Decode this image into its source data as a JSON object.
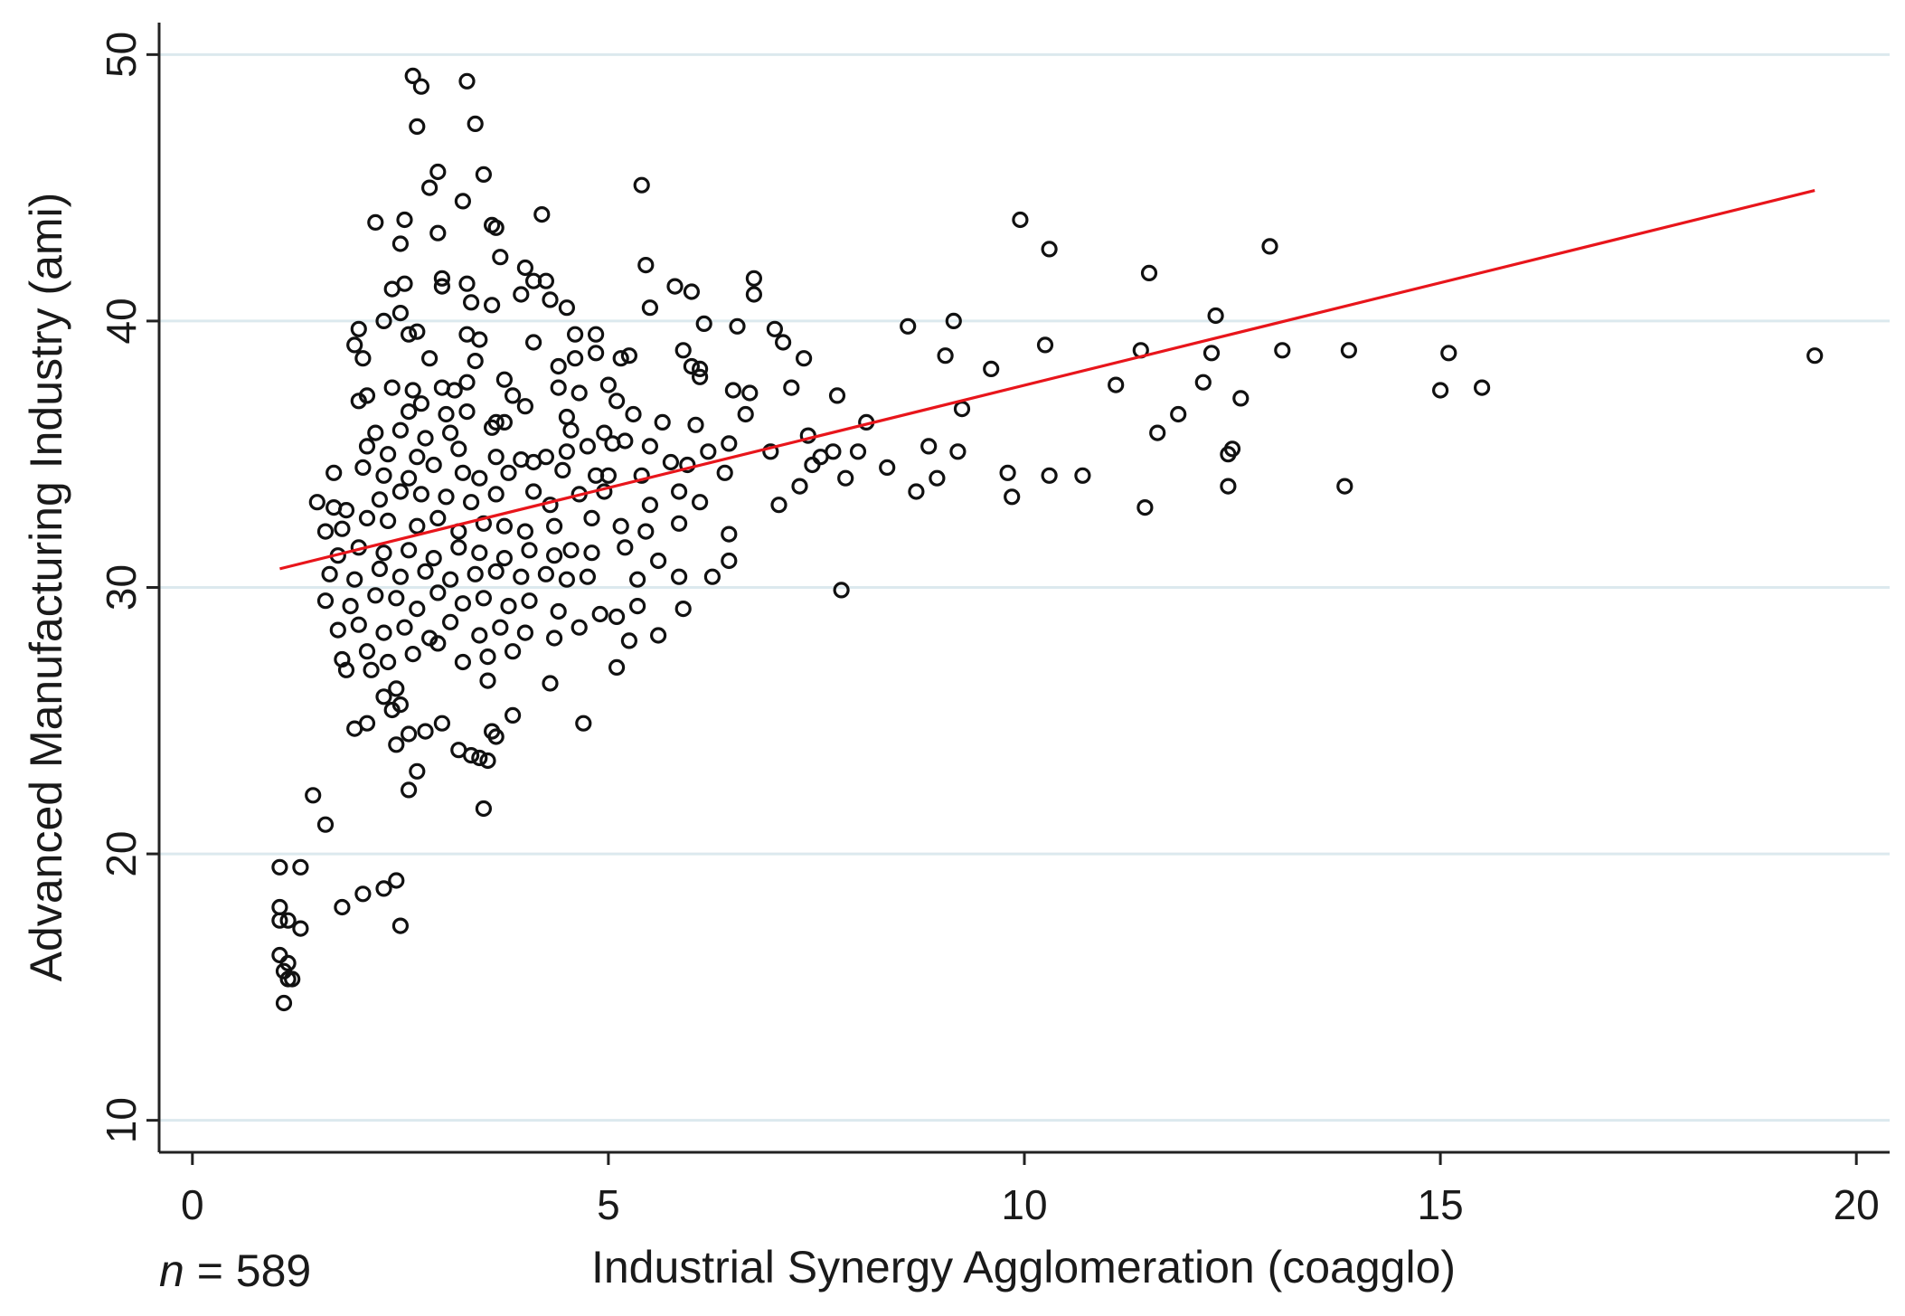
{
  "chart_data": {
    "type": "scatter",
    "title": "",
    "xlabel": "Industrial Synergy Agglomeration (coagglo)",
    "ylabel": "Advanced Manufacturing Industry (ami)",
    "xlim": [
      -0.4,
      20.4
    ],
    "ylim": [
      8.8,
      51.2
    ],
    "xticks": [
      0,
      5,
      10,
      15,
      20
    ],
    "yticks": [
      10,
      20,
      30,
      40,
      50
    ],
    "x_tick_labels": [
      "0",
      "5",
      "10",
      "15",
      "20"
    ],
    "y_tick_labels": [
      "10",
      "20",
      "30",
      "40",
      "50"
    ],
    "grid": "horizontal",
    "note_var": "n",
    "note_rest": " = 589",
    "colors": {
      "points": "#111111",
      "fit_line": "#e8151b",
      "grid": "#dce9ee"
    },
    "fit_line": {
      "x": [
        1.05,
        19.5
      ],
      "y": [
        30.7,
        44.9
      ]
    },
    "points": [
      [
        2.65,
        49.2
      ],
      [
        2.75,
        48.8
      ],
      [
        3.3,
        49
      ],
      [
        3.4,
        47.4
      ],
      [
        2.7,
        47.3
      ],
      [
        3.5,
        45.5
      ],
      [
        2.95,
        45.6
      ],
      [
        2.85,
        45
      ],
      [
        3.25,
        44.5
      ],
      [
        5.4,
        45.1
      ],
      [
        2.2,
        43.7
      ],
      [
        2.55,
        43.8
      ],
      [
        3.6,
        43.6
      ],
      [
        3.65,
        43.5
      ],
      [
        2.95,
        43.3
      ],
      [
        4.2,
        44
      ],
      [
        2.5,
        42.9
      ],
      [
        3.7,
        42.4
      ],
      [
        4.0,
        42
      ],
      [
        5.45,
        42.1
      ],
      [
        10.3,
        42.7
      ],
      [
        12.95,
        42.8
      ],
      [
        9.95,
        43.8
      ],
      [
        11.5,
        41.8
      ],
      [
        2.4,
        41.2
      ],
      [
        2.55,
        41.4
      ],
      [
        3.0,
        41.6
      ],
      [
        3.3,
        41.4
      ],
      [
        3.0,
        41.3
      ],
      [
        4.1,
        41.5
      ],
      [
        4.25,
        41.5
      ],
      [
        5.8,
        41.3
      ],
      [
        6.0,
        41.1
      ],
      [
        6.75,
        41.6
      ],
      [
        6.75,
        41
      ],
      [
        3.35,
        40.7
      ],
      [
        3.6,
        40.6
      ],
      [
        3.95,
        41
      ],
      [
        4.3,
        40.8
      ],
      [
        4.5,
        40.5
      ],
      [
        2.3,
        40
      ],
      [
        2.5,
        40.3
      ],
      [
        5.5,
        40.5
      ],
      [
        2.0,
        39.7
      ],
      [
        2.6,
        39.5
      ],
      [
        2.7,
        39.6
      ],
      [
        3.3,
        39.5
      ],
      [
        3.45,
        39.3
      ],
      [
        4.1,
        39.2
      ],
      [
        4.6,
        39.5
      ],
      [
        4.85,
        39.5
      ],
      [
        6.15,
        39.9
      ],
      [
        6.55,
        39.8
      ],
      [
        7.0,
        39.7
      ],
      [
        7.1,
        39.2
      ],
      [
        8.6,
        39.8
      ],
      [
        9.15,
        40
      ],
      [
        12.3,
        40.2
      ],
      [
        1.95,
        39.1
      ],
      [
        2.05,
        38.6
      ],
      [
        2.85,
        38.6
      ],
      [
        3.4,
        38.5
      ],
      [
        4.4,
        38.3
      ],
      [
        4.6,
        38.6
      ],
      [
        4.85,
        38.8
      ],
      [
        5.15,
        38.6
      ],
      [
        5.25,
        38.7
      ],
      [
        5.9,
        38.9
      ],
      [
        6.0,
        38.3
      ],
      [
        6.1,
        38.2
      ],
      [
        7.35,
        38.6
      ],
      [
        9.05,
        38.7
      ],
      [
        10.25,
        39.1
      ],
      [
        11.4,
        38.9
      ],
      [
        12.25,
        38.8
      ],
      [
        13.1,
        38.9
      ],
      [
        13.9,
        38.9
      ],
      [
        15.1,
        38.8
      ],
      [
        19.5,
        38.7
      ],
      [
        2.4,
        37.5
      ],
      [
        2.65,
        37.4
      ],
      [
        3.0,
        37.5
      ],
      [
        3.15,
        37.4
      ],
      [
        3.3,
        37.7
      ],
      [
        3.75,
        37.8
      ],
      [
        3.85,
        37.2
      ],
      [
        4.4,
        37.5
      ],
      [
        4.65,
        37.3
      ],
      [
        5.0,
        37.6
      ],
      [
        5.1,
        37
      ],
      [
        6.1,
        37.9
      ],
      [
        6.5,
        37.4
      ],
      [
        6.7,
        37.3
      ],
      [
        7.2,
        37.5
      ],
      [
        7.75,
        37.2
      ],
      [
        9.6,
        38.2
      ],
      [
        11.1,
        37.6
      ],
      [
        12.15,
        37.7
      ],
      [
        12.6,
        37.1
      ],
      [
        15.0,
        37.4
      ],
      [
        15.5,
        37.5
      ],
      [
        2.0,
        37
      ],
      [
        2.1,
        37.2
      ],
      [
        2.6,
        36.6
      ],
      [
        2.75,
        36.9
      ],
      [
        3.05,
        36.5
      ],
      [
        3.3,
        36.6
      ],
      [
        3.65,
        36.2
      ],
      [
        3.75,
        36.2
      ],
      [
        4.0,
        36.8
      ],
      [
        4.5,
        36.4
      ],
      [
        5.3,
        36.5
      ],
      [
        5.65,
        36.2
      ],
      [
        6.05,
        36.1
      ],
      [
        6.65,
        36.5
      ],
      [
        8.1,
        36.2
      ],
      [
        9.25,
        36.7
      ],
      [
        11.85,
        36.5
      ],
      [
        2.2,
        35.8
      ],
      [
        2.5,
        35.9
      ],
      [
        2.8,
        35.6
      ],
      [
        3.1,
        35.8
      ],
      [
        3.6,
        36
      ],
      [
        4.55,
        35.9
      ],
      [
        4.95,
        35.8
      ],
      [
        5.2,
        35.5
      ],
      [
        7.4,
        35.7
      ],
      [
        8.85,
        35.3
      ],
      [
        11.6,
        35.8
      ],
      [
        2.1,
        35.3
      ],
      [
        2.35,
        35
      ],
      [
        2.7,
        34.9
      ],
      [
        3.2,
        35.2
      ],
      [
        3.65,
        34.9
      ],
      [
        3.95,
        34.8
      ],
      [
        4.25,
        34.9
      ],
      [
        4.5,
        35.1
      ],
      [
        4.75,
        35.3
      ],
      [
        5.05,
        35.4
      ],
      [
        5.5,
        35.3
      ],
      [
        6.2,
        35.1
      ],
      [
        6.45,
        35.4
      ],
      [
        6.95,
        35.1
      ],
      [
        7.55,
        34.9
      ],
      [
        7.7,
        35.1
      ],
      [
        8.0,
        35.1
      ],
      [
        9.2,
        35.1
      ],
      [
        12.45,
        35
      ],
      [
        12.5,
        35.2
      ],
      [
        1.7,
        34.3
      ],
      [
        2.05,
        34.5
      ],
      [
        2.3,
        34.2
      ],
      [
        2.6,
        34.1
      ],
      [
        2.9,
        34.6
      ],
      [
        3.25,
        34.3
      ],
      [
        3.45,
        34.1
      ],
      [
        3.8,
        34.3
      ],
      [
        4.1,
        34.7
      ],
      [
        4.45,
        34.4
      ],
      [
        4.85,
        34.2
      ],
      [
        5.0,
        34.2
      ],
      [
        5.4,
        34.2
      ],
      [
        5.75,
        34.7
      ],
      [
        5.95,
        34.6
      ],
      [
        6.4,
        34.3
      ],
      [
        7.45,
        34.6
      ],
      [
        7.85,
        34.1
      ],
      [
        8.35,
        34.5
      ],
      [
        8.95,
        34.1
      ],
      [
        9.8,
        34.3
      ],
      [
        10.3,
        34.2
      ],
      [
        10.7,
        34.2
      ],
      [
        1.5,
        33.2
      ],
      [
        1.7,
        33
      ],
      [
        1.85,
        32.9
      ],
      [
        2.25,
        33.3
      ],
      [
        2.5,
        33.6
      ],
      [
        2.75,
        33.5
      ],
      [
        3.05,
        33.4
      ],
      [
        3.35,
        33.2
      ],
      [
        3.65,
        33.5
      ],
      [
        4.1,
        33.6
      ],
      [
        4.3,
        33.1
      ],
      [
        4.65,
        33.5
      ],
      [
        4.95,
        33.6
      ],
      [
        5.5,
        33.1
      ],
      [
        5.85,
        33.6
      ],
      [
        6.1,
        33.2
      ],
      [
        7.05,
        33.1
      ],
      [
        7.3,
        33.8
      ],
      [
        8.7,
        33.6
      ],
      [
        9.85,
        33.4
      ],
      [
        11.45,
        33
      ],
      [
        12.45,
        33.8
      ],
      [
        13.85,
        33.8
      ],
      [
        1.6,
        32.1
      ],
      [
        1.8,
        32.2
      ],
      [
        2.1,
        32.6
      ],
      [
        2.35,
        32.5
      ],
      [
        2.7,
        32.3
      ],
      [
        2.95,
        32.6
      ],
      [
        3.2,
        32.1
      ],
      [
        3.5,
        32.4
      ],
      [
        3.75,
        32.3
      ],
      [
        4.0,
        32.1
      ],
      [
        4.35,
        32.3
      ],
      [
        4.8,
        32.6
      ],
      [
        5.15,
        32.3
      ],
      [
        5.45,
        32.1
      ],
      [
        5.85,
        32.4
      ],
      [
        6.45,
        32
      ],
      [
        1.75,
        31.2
      ],
      [
        2.0,
        31.5
      ],
      [
        2.3,
        31.3
      ],
      [
        2.6,
        31.4
      ],
      [
        2.9,
        31.1
      ],
      [
        3.2,
        31.5
      ],
      [
        3.45,
        31.3
      ],
      [
        3.75,
        31.1
      ],
      [
        4.05,
        31.4
      ],
      [
        4.35,
        31.2
      ],
      [
        4.55,
        31.4
      ],
      [
        4.8,
        31.3
      ],
      [
        5.2,
        31.5
      ],
      [
        5.6,
        31
      ],
      [
        6.45,
        31
      ],
      [
        1.65,
        30.5
      ],
      [
        1.95,
        30.3
      ],
      [
        2.25,
        30.7
      ],
      [
        2.5,
        30.4
      ],
      [
        2.8,
        30.6
      ],
      [
        3.1,
        30.3
      ],
      [
        3.4,
        30.5
      ],
      [
        3.65,
        30.6
      ],
      [
        3.95,
        30.4
      ],
      [
        4.25,
        30.5
      ],
      [
        4.5,
        30.3
      ],
      [
        4.75,
        30.4
      ],
      [
        5.35,
        30.3
      ],
      [
        5.85,
        30.4
      ],
      [
        6.25,
        30.4
      ],
      [
        1.6,
        29.5
      ],
      [
        1.9,
        29.3
      ],
      [
        2.2,
        29.7
      ],
      [
        2.45,
        29.6
      ],
      [
        2.7,
        29.2
      ],
      [
        2.95,
        29.8
      ],
      [
        3.25,
        29.4
      ],
      [
        3.5,
        29.6
      ],
      [
        3.8,
        29.3
      ],
      [
        4.05,
        29.5
      ],
      [
        4.4,
        29.1
      ],
      [
        4.9,
        29
      ],
      [
        5.35,
        29.3
      ],
      [
        5.9,
        29.2
      ],
      [
        7.8,
        29.9
      ],
      [
        1.75,
        28.4
      ],
      [
        2.0,
        28.6
      ],
      [
        2.3,
        28.3
      ],
      [
        2.55,
        28.5
      ],
      [
        2.85,
        28.1
      ],
      [
        3.1,
        28.7
      ],
      [
        3.45,
        28.2
      ],
      [
        3.7,
        28.5
      ],
      [
        4.0,
        28.3
      ],
      [
        4.35,
        28.1
      ],
      [
        4.65,
        28.5
      ],
      [
        5.1,
        28.9
      ],
      [
        5.25,
        28
      ],
      [
        5.6,
        28.2
      ],
      [
        1.8,
        27.3
      ],
      [
        2.1,
        27.6
      ],
      [
        2.35,
        27.2
      ],
      [
        2.65,
        27.5
      ],
      [
        2.95,
        27.9
      ],
      [
        3.25,
        27.2
      ],
      [
        3.55,
        27.4
      ],
      [
        3.85,
        27.6
      ],
      [
        5.1,
        27
      ],
      [
        1.85,
        26.9
      ],
      [
        2.15,
        26.9
      ],
      [
        2.45,
        26.2
      ],
      [
        3.55,
        26.5
      ],
      [
        4.3,
        26.4
      ],
      [
        2.3,
        25.9
      ],
      [
        2.4,
        25.4
      ],
      [
        2.5,
        25.6
      ],
      [
        3.85,
        25.2
      ],
      [
        1.95,
        24.7
      ],
      [
        2.1,
        24.9
      ],
      [
        2.45,
        24.1
      ],
      [
        2.6,
        24.5
      ],
      [
        2.8,
        24.6
      ],
      [
        3.0,
        24.9
      ],
      [
        3.2,
        23.9
      ],
      [
        3.35,
        23.7
      ],
      [
        3.6,
        24.6
      ],
      [
        3.65,
        24.4
      ],
      [
        4.7,
        24.9
      ],
      [
        3.45,
        23.6
      ],
      [
        3.55,
        23.5
      ],
      [
        2.7,
        23.1
      ],
      [
        2.6,
        22.4
      ],
      [
        3.5,
        21.7
      ],
      [
        1.45,
        22.2
      ],
      [
        1.6,
        21.1
      ],
      [
        1.05,
        19.5
      ],
      [
        1.3,
        19.5
      ],
      [
        2.45,
        19
      ],
      [
        2.3,
        18.7
      ],
      [
        2.05,
        18.5
      ],
      [
        1.8,
        18
      ],
      [
        1.05,
        18
      ],
      [
        1.15,
        17.5
      ],
      [
        1.05,
        17.5
      ],
      [
        1.3,
        17.2
      ],
      [
        2.5,
        17.3
      ],
      [
        1.05,
        16.2
      ],
      [
        1.15,
        15.9
      ],
      [
        1.1,
        15.6
      ],
      [
        1.15,
        15.3
      ],
      [
        1.2,
        15.3
      ],
      [
        1.1,
        14.4
      ]
    ]
  }
}
